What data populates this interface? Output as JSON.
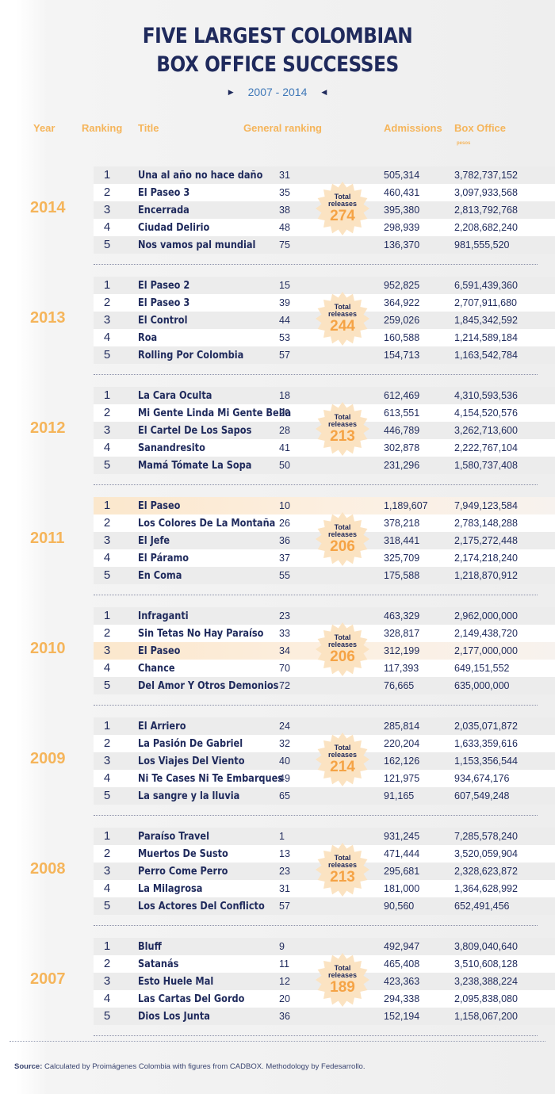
{
  "title_line1": "FIVE LARGEST COLOMBIAN",
  "title_line2": "BOX OFFICE SUCCESSES",
  "period": "2007 - 2014",
  "headers": {
    "year": "Year",
    "ranking": "Ranking",
    "title": "Title",
    "general_ranking": "General ranking",
    "admissions": "Admissions",
    "box_office": "Box Office",
    "box_office_unit": "pesos"
  },
  "total_label_1": "Total",
  "total_label_2": "releases",
  "years": [
    {
      "year": "2014",
      "total": "274",
      "films": [
        {
          "rank": "1",
          "title": "Una al año no hace daño",
          "general": "31",
          "admissions": "505,314",
          "box_office": "3,782,737,152"
        },
        {
          "rank": "2",
          "title": "El Paseo 3",
          "general": "35",
          "admissions": "460,431",
          "box_office": "3,097,933,568"
        },
        {
          "rank": "3",
          "title": "Encerrada",
          "general": "38",
          "admissions": "395,380",
          "box_office": "2,813,792,768"
        },
        {
          "rank": "4",
          "title": "Ciudad Delirio",
          "general": "48",
          "admissions": "298,939",
          "box_office": "2,208,682,240"
        },
        {
          "rank": "5",
          "title": "Nos vamos pal mundial",
          "general": "75",
          "admissions": "136,370",
          "box_office": "981,555,520"
        }
      ]
    },
    {
      "year": "2013",
      "total": "244",
      "films": [
        {
          "rank": "1",
          "title": "El Paseo 2",
          "general": "15",
          "admissions": "952,825",
          "box_office": "6,591,439,360"
        },
        {
          "rank": "2",
          "title": "El Paseo 3",
          "general": "39",
          "admissions": "364,922",
          "box_office": "2,707,911,680"
        },
        {
          "rank": "3",
          "title": "El Control",
          "general": "44",
          "admissions": "259,026",
          "box_office": "1,845,342,592"
        },
        {
          "rank": "4",
          "title": "Roa",
          "general": "53",
          "admissions": "160,588",
          "box_office": "1,214,589,184"
        },
        {
          "rank": "5",
          "title": "Rolling Por Colombia",
          "general": "57",
          "admissions": "154,713",
          "box_office": "1,163,542,784"
        }
      ]
    },
    {
      "year": "2012",
      "total": "213",
      "films": [
        {
          "rank": "1",
          "title": "La Cara Oculta",
          "general": "18",
          "admissions": "612,469",
          "box_office": "4,310,593,536"
        },
        {
          "rank": "2",
          "title": "Mi Gente Linda Mi Gente Bella",
          "general": "20",
          "admissions": "613,551",
          "box_office": "4,154,520,576"
        },
        {
          "rank": "3",
          "title": "El Cartel De Los Sapos",
          "general": "28",
          "admissions": "446,789",
          "box_office": "3,262,713,600"
        },
        {
          "rank": "4",
          "title": "Sanandresito",
          "general": "41",
          "admissions": "302,878",
          "box_office": "2,222,767,104"
        },
        {
          "rank": "5",
          "title": "Mamá Tómate La Sopa",
          "general": "50",
          "admissions": "231,296",
          "box_office": "1,580,737,408"
        }
      ]
    },
    {
      "year": "2011",
      "total": "206",
      "films": [
        {
          "rank": "1",
          "title": "El Paseo",
          "general": "10",
          "admissions": "1,189,607",
          "box_office": "7,949,123,584"
        },
        {
          "rank": "2",
          "title": "Los Colores De La Montaña",
          "general": "26",
          "admissions": "378,218",
          "box_office": "2,783,148,288"
        },
        {
          "rank": "3",
          "title": "El Jefe",
          "general": "36",
          "admissions": "318,441",
          "box_office": "2,175,272,448"
        },
        {
          "rank": "4",
          "title": "El Páramo",
          "general": "37",
          "admissions": "325,709",
          "box_office": "2,174,218,240"
        },
        {
          "rank": "5",
          "title": "En Coma",
          "general": "55",
          "admissions": "175,588",
          "box_office": "1,218,870,912"
        }
      ]
    },
    {
      "year": "2010",
      "total": "206",
      "films": [
        {
          "rank": "1",
          "title": "Infraganti",
          "general": "23",
          "admissions": "463,329",
          "box_office": "2,962,000,000"
        },
        {
          "rank": "2",
          "title": "Sin Tetas No Hay Paraíso",
          "general": "33",
          "admissions": "328,817",
          "box_office": "2,149,438,720"
        },
        {
          "rank": "3",
          "title": "El Paseo",
          "general": "34",
          "admissions": "312,199",
          "box_office": "2,177,000,000"
        },
        {
          "rank": "4",
          "title": "Chance",
          "general": "70",
          "admissions": "117,393",
          "box_office": "649,151,552"
        },
        {
          "rank": "5",
          "title": "Del Amor Y Otros Demonios",
          "general": "72",
          "admissions": "76,665",
          "box_office": "635,000,000"
        }
      ]
    },
    {
      "year": "2009",
      "total": "214",
      "films": [
        {
          "rank": "1",
          "title": "El Arriero",
          "general": "24",
          "admissions": "285,814",
          "box_office": "2,035,071,872"
        },
        {
          "rank": "2",
          "title": "La Pasión De Gabriel",
          "general": "32",
          "admissions": "220,204",
          "box_office": "1,633,359,616"
        },
        {
          "rank": "3",
          "title": "Los Viajes Del Viento",
          "general": "40",
          "admissions": "162,126",
          "box_office": "1,153,356,544"
        },
        {
          "rank": "4",
          "title": "Ni Te Cases Ni Te Embarques",
          "general": "49",
          "admissions": "121,975",
          "box_office": "934,674,176"
        },
        {
          "rank": "5",
          "title": "La sangre y la lluvia",
          "general": "65",
          "admissions": "91,165",
          "box_office": "607,549,248"
        }
      ]
    },
    {
      "year": "2008",
      "total": "213",
      "films": [
        {
          "rank": "1",
          "title": "Paraíso Travel",
          "general": "1",
          "admissions": "931,245",
          "box_office": "7,285,578,240"
        },
        {
          "rank": "2",
          "title": "Muertos De Susto",
          "general": "13",
          "admissions": "471,444",
          "box_office": "3,520,059,904"
        },
        {
          "rank": "3",
          "title": "Perro Come Perro",
          "general": "23",
          "admissions": "295,681",
          "box_office": "2,328,623,872"
        },
        {
          "rank": "4",
          "title": "La Milagrosa",
          "general": "31",
          "admissions": "181,000",
          "box_office": "1,364,628,992"
        },
        {
          "rank": "5",
          "title": "Los Actores Del Conflicto",
          "general": "57",
          "admissions": "90,560",
          "box_office": "652,491,456"
        }
      ]
    },
    {
      "year": "2007",
      "total": "189",
      "films": [
        {
          "rank": "1",
          "title": "Bluff",
          "general": "9",
          "admissions": "492,947",
          "box_office": "3,809,040,640"
        },
        {
          "rank": "2",
          "title": "Satanás",
          "general": "11",
          "admissions": "465,408",
          "box_office": "3,510,608,128"
        },
        {
          "rank": "3",
          "title": "Esto Huele Mal",
          "general": "12",
          "admissions": "423,363",
          "box_office": "3,238,388,224"
        },
        {
          "rank": "4",
          "title": "Las Cartas Del Gordo",
          "general": "20",
          "admissions": "294,338",
          "box_office": "2,095,838,080"
        },
        {
          "rank": "5",
          "title": "Dios Los Junta",
          "general": "36",
          "admissions": "152,194",
          "box_office": "1,158,067,200"
        }
      ]
    }
  ],
  "highlight": [
    {
      "year": "2011",
      "rank": "1"
    },
    {
      "year": "2010",
      "rank": "3"
    }
  ],
  "source_label": "Source:",
  "source_text": " Calculated by Proimágenes Colombia with figures from CADBOX. Methodology by Fedesarrollo.",
  "colors": {
    "navy": "#1f2a5c",
    "orange": "#f5b55b",
    "blue": "#3f78b8",
    "badge": "#fbe3c2"
  }
}
